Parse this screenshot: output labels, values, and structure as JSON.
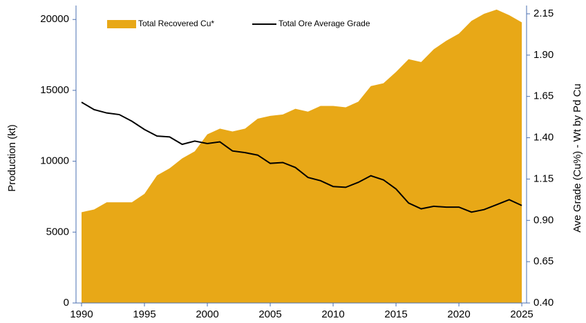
{
  "chart_data": {
    "type": "area-line",
    "x": [
      1990,
      1991,
      1992,
      1993,
      1994,
      1995,
      1996,
      1997,
      1998,
      1999,
      2000,
      2001,
      2002,
      2003,
      2004,
      2005,
      2006,
      2007,
      2008,
      2009,
      2010,
      2011,
      2012,
      2013,
      2014,
      2015,
      2016,
      2017,
      2018,
      2019,
      2020,
      2021,
      2022,
      2023,
      2024,
      2025
    ],
    "series": [
      {
        "name": "Total Recovered Cu*",
        "type": "area",
        "color": "#e8a817",
        "values": [
          6400,
          6600,
          7100,
          7100,
          7100,
          7700,
          9000,
          9500,
          10200,
          10700,
          11900,
          12300,
          12100,
          12300,
          13000,
          13200,
          13300,
          13700,
          13500,
          13900,
          13900,
          13800,
          14200,
          15300,
          15500,
          16300,
          17200,
          17000,
          17900,
          18500,
          19000,
          19900,
          20400,
          20700,
          20300,
          19800
        ]
      },
      {
        "name": "Total Ore Average Grade",
        "type": "line",
        "color": "#000000",
        "axis": "y2",
        "values": [
          1.615,
          1.57,
          1.55,
          1.54,
          1.5,
          1.45,
          1.41,
          1.405,
          1.36,
          1.38,
          1.365,
          1.375,
          1.32,
          1.31,
          1.295,
          1.245,
          1.25,
          1.22,
          1.16,
          1.14,
          1.105,
          1.1,
          1.13,
          1.17,
          1.145,
          1.09,
          1.005,
          0.97,
          0.985,
          0.98,
          0.98,
          0.95,
          0.965,
          0.995,
          1.025,
          0.99
        ]
      }
    ],
    "ylabel": "Production (kt)",
    "y2label": "Ave Grade (Cu%) - Wt by Pd Cu",
    "xlim": [
      1989.56,
      2025.38
    ],
    "xticks": [
      1990,
      1995,
      2000,
      2005,
      2010,
      2015,
      2020,
      2025
    ],
    "ylim": [
      0,
      20400
    ],
    "yticks": [
      0,
      5000,
      10000,
      15000,
      20000
    ],
    "y2lim": [
      0.4,
      2.15
    ],
    "y2ticks": [
      {
        "value": 0.4,
        "label": "0.40"
      },
      0.65,
      {
        "value": 0.9,
        "label": "0.90"
      },
      1.15,
      {
        "value": 1.4,
        "label": "1.40"
      },
      1.65,
      {
        "value": 1.9,
        "label": "1.90"
      },
      2.15
    ],
    "legend": "top",
    "axis_color": "#4a6fb0"
  }
}
